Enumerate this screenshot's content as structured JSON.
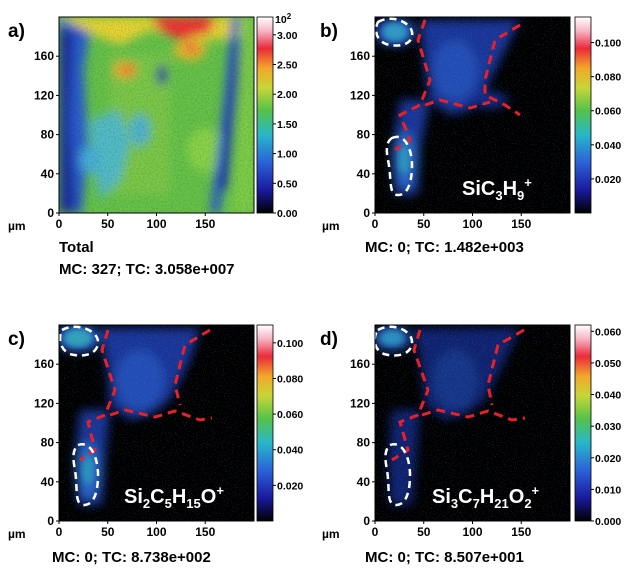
{
  "figure": {
    "axis_unit": "µm",
    "x_ticks": [
      "0",
      "50",
      "100",
      "150"
    ],
    "y_ticks": [
      "0",
      "40",
      "80",
      "120",
      "160"
    ]
  },
  "panels": [
    {
      "label": "a)",
      "caption_lines": [
        "Total",
        "MC:  327; TC: 3.058e+007"
      ],
      "species_label": [],
      "colorbar_ticks": [
        "0.00",
        "0.50",
        "1.00",
        "1.50",
        "2.00",
        "2.50",
        "3.00"
      ],
      "colorbar_exponent": "10",
      "colorbar_exponent_power": "2",
      "colorbar_max": 3.3
    },
    {
      "label": "b)",
      "caption_lines": [
        "MC:  0; TC: 1.482e+003"
      ],
      "species_label": [
        {
          "t": "SiC"
        },
        {
          "t": "3",
          "sub": true
        },
        {
          "t": "H"
        },
        {
          "t": "9",
          "sub": true
        },
        {
          "t": "+",
          "sup": true
        }
      ],
      "colorbar_ticks": [
        "0.020",
        "0.040",
        "0.060",
        "0.080",
        "0.100"
      ],
      "colorbar_max": 0.115
    },
    {
      "label": "c)",
      "caption_lines": [
        "MC:  0; TC: 8.738e+002"
      ],
      "species_label": [
        {
          "t": "Si"
        },
        {
          "t": "2",
          "sub": true
        },
        {
          "t": "C"
        },
        {
          "t": "5",
          "sub": true
        },
        {
          "t": "H"
        },
        {
          "t": "15",
          "sub": true
        },
        {
          "t": "O"
        },
        {
          "t": "+",
          "sup": true
        }
      ],
      "colorbar_ticks": [
        "0.020",
        "0.040",
        "0.060",
        "0.080",
        "0.100"
      ],
      "colorbar_max": 0.11
    },
    {
      "label": "d)",
      "caption_lines": [
        "MC:  0; TC: 8.507e+001"
      ],
      "species_label": [
        {
          "t": "Si"
        },
        {
          "t": "3",
          "sub": true
        },
        {
          "t": "C"
        },
        {
          "t": "7",
          "sub": true
        },
        {
          "t": "H"
        },
        {
          "t": "21",
          "sub": true
        },
        {
          "t": "O"
        },
        {
          "t": "2",
          "sub": true
        },
        {
          "t": "+",
          "sup": true
        }
      ],
      "colorbar_ticks": [
        "0.000",
        "0.010",
        "0.020",
        "0.030",
        "0.040",
        "0.050",
        "0.060"
      ],
      "colorbar_max": 0.062
    }
  ],
  "colors": {
    "region_outline_red": "#e8202a",
    "region_outline_white": "#ffffff",
    "colormap": [
      "#000000",
      "#1a1aa0",
      "#2b63d8",
      "#27b8c8",
      "#54c24a",
      "#c8d636",
      "#f3a62a",
      "#ea2a3a",
      "#f7b6c6",
      "#ffffff"
    ]
  }
}
